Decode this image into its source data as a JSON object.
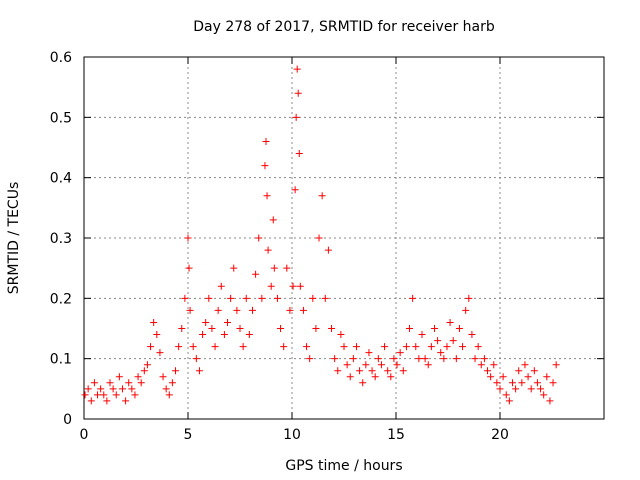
{
  "chart_data": {
    "type": "scatter",
    "title": "Day 278 of 2017, SRMTID for receiver harb",
    "xlabel": "GPS time / hours",
    "ylabel": "SRMTID / TECUs",
    "xlim": [
      0,
      25
    ],
    "ylim": [
      0,
      0.6
    ],
    "xticks": [
      0,
      5,
      10,
      15,
      20
    ],
    "yticks": [
      0,
      0.1,
      0.2,
      0.3,
      0.4,
      0.5,
      0.6
    ],
    "xtick_labels": [
      "0",
      "5",
      "10",
      "15",
      "20"
    ],
    "ytick_labels": [
      "0",
      "0.1",
      "0.2",
      "0.3",
      "0.4",
      "0.5",
      "0.6"
    ],
    "grid": true,
    "marker": "+",
    "color": "#ff0000",
    "series": [
      {
        "name": "SRMTID",
        "x": [
          0.05,
          0.2,
          0.35,
          0.5,
          0.65,
          0.8,
          0.95,
          1.1,
          1.25,
          1.4,
          1.55,
          1.7,
          1.85,
          2.0,
          2.15,
          2.3,
          2.45,
          2.6,
          2.75,
          2.9,
          3.05,
          3.2,
          3.35,
          3.5,
          3.65,
          3.8,
          3.95,
          4.1,
          4.25,
          4.4,
          4.55,
          4.7,
          4.85,
          5.0,
          5.05,
          5.1,
          5.25,
          5.4,
          5.55,
          5.7,
          5.85,
          6.0,
          6.15,
          6.3,
          6.45,
          6.6,
          6.75,
          6.9,
          7.05,
          7.2,
          7.35,
          7.5,
          7.65,
          7.8,
          7.95,
          8.1,
          8.25,
          8.4,
          8.55,
          8.7,
          8.75,
          8.8,
          8.85,
          9.0,
          9.1,
          9.15,
          9.3,
          9.45,
          9.6,
          9.75,
          9.9,
          10.05,
          10.15,
          10.2,
          10.25,
          10.3,
          10.35,
          10.4,
          10.55,
          10.7,
          10.85,
          11.0,
          11.15,
          11.3,
          11.45,
          11.6,
          11.75,
          11.9,
          12.05,
          12.2,
          12.35,
          12.5,
          12.65,
          12.8,
          12.95,
          13.1,
          13.25,
          13.4,
          13.55,
          13.7,
          13.85,
          14.0,
          14.15,
          14.3,
          14.45,
          14.6,
          14.75,
          14.9,
          15.05,
          15.2,
          15.35,
          15.5,
          15.65,
          15.8,
          15.95,
          16.1,
          16.25,
          16.4,
          16.55,
          16.7,
          16.85,
          17.0,
          17.15,
          17.3,
          17.45,
          17.6,
          17.75,
          17.9,
          18.05,
          18.2,
          18.35,
          18.5,
          18.65,
          18.8,
          18.95,
          19.1,
          19.25,
          19.4,
          19.55,
          19.7,
          19.85,
          20.0,
          20.15,
          20.3,
          20.45,
          20.6,
          20.75,
          20.9,
          21.05,
          21.2,
          21.35,
          21.5,
          21.65,
          21.8,
          21.95,
          22.1,
          22.25,
          22.4,
          22.55,
          22.7
        ],
        "y": [
          0.04,
          0.05,
          0.03,
          0.06,
          0.04,
          0.05,
          0.04,
          0.03,
          0.06,
          0.05,
          0.04,
          0.07,
          0.05,
          0.03,
          0.06,
          0.05,
          0.04,
          0.07,
          0.06,
          0.08,
          0.09,
          0.12,
          0.16,
          0.14,
          0.11,
          0.07,
          0.05,
          0.04,
          0.06,
          0.08,
          0.12,
          0.15,
          0.2,
          0.3,
          0.25,
          0.18,
          0.12,
          0.1,
          0.08,
          0.14,
          0.16,
          0.2,
          0.15,
          0.12,
          0.18,
          0.22,
          0.14,
          0.16,
          0.2,
          0.25,
          0.18,
          0.15,
          0.12,
          0.2,
          0.14,
          0.18,
          0.24,
          0.3,
          0.2,
          0.42,
          0.46,
          0.37,
          0.28,
          0.22,
          0.33,
          0.25,
          0.2,
          0.15,
          0.12,
          0.25,
          0.18,
          0.22,
          0.38,
          0.5,
          0.58,
          0.54,
          0.44,
          0.22,
          0.18,
          0.12,
          0.1,
          0.2,
          0.15,
          0.3,
          0.37,
          0.2,
          0.28,
          0.15,
          0.1,
          0.08,
          0.14,
          0.12,
          0.09,
          0.07,
          0.1,
          0.12,
          0.08,
          0.06,
          0.09,
          0.11,
          0.08,
          0.07,
          0.1,
          0.09,
          0.12,
          0.08,
          0.07,
          0.1,
          0.09,
          0.11,
          0.08,
          0.12,
          0.15,
          0.2,
          0.12,
          0.1,
          0.14,
          0.1,
          0.09,
          0.12,
          0.15,
          0.13,
          0.11,
          0.1,
          0.12,
          0.16,
          0.13,
          0.1,
          0.15,
          0.12,
          0.18,
          0.2,
          0.14,
          0.1,
          0.12,
          0.09,
          0.1,
          0.08,
          0.07,
          0.09,
          0.06,
          0.05,
          0.07,
          0.04,
          0.03,
          0.06,
          0.05,
          0.08,
          0.06,
          0.09,
          0.07,
          0.05,
          0.08,
          0.06,
          0.05,
          0.04,
          0.07,
          0.03,
          0.06,
          0.09
        ]
      }
    ]
  }
}
